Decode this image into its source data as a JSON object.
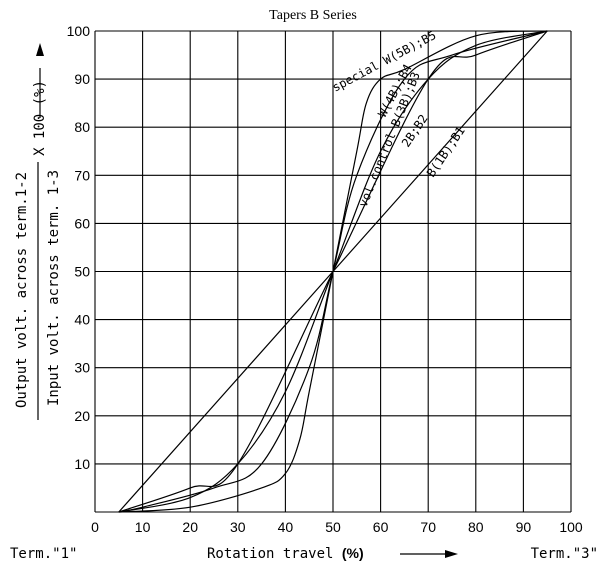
{
  "chart_data": {
    "type": "line",
    "title": "Tapers B Series",
    "xlabel": "Rotation travel",
    "xlabel_unit": "(%)",
    "term_left": "Term.\"1\"",
    "term_right": "Term.\"3\"",
    "ylabel_numerator": "Output volt. across term.1-2",
    "ylabel_denominator": "Input volt. across term. 1-3",
    "ylabel_multiplier": "X 100 (%)",
    "xlim": [
      0,
      100
    ],
    "ylim": [
      0,
      100
    ],
    "xticks": [
      "0",
      "10",
      "20",
      "30",
      "40",
      "50",
      "60",
      "70",
      "80",
      "90",
      "100"
    ],
    "yticks": [
      "10",
      "20",
      "30",
      "40",
      "50",
      "60",
      "70",
      "80",
      "90",
      "100"
    ],
    "grid": true,
    "series": [
      {
        "name": "B(1B);B1",
        "points": [
          [
            5,
            0
          ],
          [
            50,
            50
          ],
          [
            95,
            100
          ]
        ]
      },
      {
        "name": "2B;B2",
        "points": [
          [
            5,
            0
          ],
          [
            20,
            5
          ],
          [
            30,
            10
          ],
          [
            50,
            50
          ],
          [
            70,
            90
          ],
          [
            80,
            95
          ],
          [
            95,
            100
          ]
        ]
      },
      {
        "name": "vol.control B(3B);B3",
        "points": [
          [
            5,
            0
          ],
          [
            20,
            3
          ],
          [
            30,
            10
          ],
          [
            40,
            25
          ],
          [
            50,
            50
          ],
          [
            60,
            75
          ],
          [
            70,
            90
          ],
          [
            80,
            97
          ],
          [
            95,
            100
          ]
        ]
      },
      {
        "name": "W(4B);B4",
        "points": [
          [
            5,
            0
          ],
          [
            10,
            1
          ],
          [
            25,
            5
          ],
          [
            35,
            10
          ],
          [
            45,
            30
          ],
          [
            50,
            50
          ],
          [
            55,
            70
          ],
          [
            65,
            90
          ],
          [
            75,
            95
          ],
          [
            95,
            100
          ]
        ]
      },
      {
        "name": "special W(5B);B5",
        "points": [
          [
            5,
            0
          ],
          [
            20,
            1
          ],
          [
            35,
            5
          ],
          [
            40,
            8
          ],
          [
            43,
            15
          ],
          [
            45,
            25
          ],
          [
            50,
            50
          ],
          [
            55,
            75
          ],
          [
            57,
            85
          ],
          [
            60,
            90
          ],
          [
            65,
            92
          ],
          [
            80,
            99
          ],
          [
            95,
            100
          ]
        ]
      }
    ]
  }
}
